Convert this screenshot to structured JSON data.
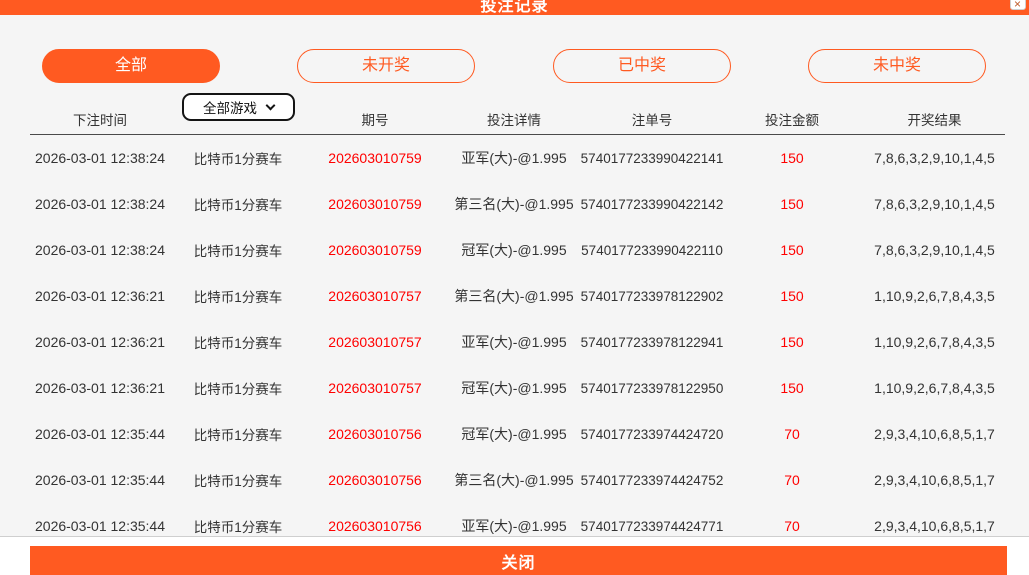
{
  "titlebar": {
    "title": "投注记录",
    "close_label": "×"
  },
  "filters": {
    "items": [
      {
        "label": "全部",
        "active": true
      },
      {
        "label": "未开奖",
        "active": false
      },
      {
        "label": "已中奖",
        "active": false
      },
      {
        "label": "未中奖",
        "active": false
      }
    ]
  },
  "table": {
    "headers": {
      "time": "下注时间",
      "period": "期号",
      "detail": "投注详情",
      "order": "注单号",
      "amount": "投注金额",
      "result": "开奖结果"
    },
    "game_select": {
      "value": "全部游戏"
    },
    "rows": [
      {
        "time": "2026-03-01 12:38:24",
        "game": "比特币1分赛车",
        "period": "202603010759",
        "detail": "亚军(大)-@1.995",
        "order": "5740177233990422141",
        "amount": "150",
        "result": "7,8,6,3,2,9,10,1,4,5"
      },
      {
        "time": "2026-03-01 12:38:24",
        "game": "比特币1分赛车",
        "period": "202603010759",
        "detail": "第三名(大)-@1.995",
        "order": "5740177233990422142",
        "amount": "150",
        "result": "7,8,6,3,2,9,10,1,4,5"
      },
      {
        "time": "2026-03-01 12:38:24",
        "game": "比特币1分赛车",
        "period": "202603010759",
        "detail": "冠军(大)-@1.995",
        "order": "5740177233990422110",
        "amount": "150",
        "result": "7,8,6,3,2,9,10,1,4,5"
      },
      {
        "time": "2026-03-01 12:36:21",
        "game": "比特币1分赛车",
        "period": "202603010757",
        "detail": "第三名(大)-@1.995",
        "order": "5740177233978122902",
        "amount": "150",
        "result": "1,10,9,2,6,7,8,4,3,5"
      },
      {
        "time": "2026-03-01 12:36:21",
        "game": "比特币1分赛车",
        "period": "202603010757",
        "detail": "亚军(大)-@1.995",
        "order": "5740177233978122941",
        "amount": "150",
        "result": "1,10,9,2,6,7,8,4,3,5"
      },
      {
        "time": "2026-03-01 12:36:21",
        "game": "比特币1分赛车",
        "period": "202603010757",
        "detail": "冠军(大)-@1.995",
        "order": "5740177233978122950",
        "amount": "150",
        "result": "1,10,9,2,6,7,8,4,3,5"
      },
      {
        "time": "2026-03-01 12:35:44",
        "game": "比特币1分赛车",
        "period": "202603010756",
        "detail": "冠军(大)-@1.995",
        "order": "5740177233974424720",
        "amount": "70",
        "result": "2,9,3,4,10,6,8,5,1,7"
      },
      {
        "time": "2026-03-01 12:35:44",
        "game": "比特币1分赛车",
        "period": "202603010756",
        "detail": "第三名(大)-@1.995",
        "order": "5740177233974424752",
        "amount": "70",
        "result": "2,9,3,4,10,6,8,5,1,7"
      },
      {
        "time": "2026-03-01 12:35:44",
        "game": "比特币1分赛车",
        "period": "202603010756",
        "detail": "亚军(大)-@1.995",
        "order": "5740177233974424771",
        "amount": "70",
        "result": "2,9,3,4,10,6,8,5,1,7"
      }
    ]
  },
  "footer": {
    "close_label": "关闭"
  },
  "colors": {
    "accent": "#ff5a21",
    "highlight": "#ff0000",
    "background": "#f5f5f5"
  }
}
